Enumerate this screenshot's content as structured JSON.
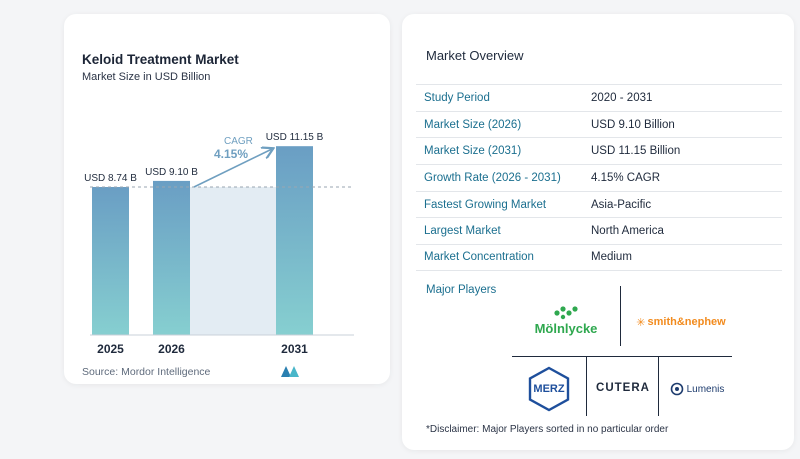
{
  "chart": {
    "title": "Keloid Treatment Market",
    "subtitle": "Market Size in USD Billion",
    "source": "Source:  Mordor Intelligence",
    "cagr_label": "CAGR",
    "cagr_value": "4.15%",
    "colors": {
      "bar_top": "#6a9ec4",
      "bar_bottom": "#86cfd0",
      "band": "#e3ecf3",
      "arrow": "#6f9fc0",
      "cagr_text": "#6f9fc0"
    }
  },
  "chart_data": {
    "type": "bar",
    "categories": [
      "2025",
      "2026",
      "2031"
    ],
    "values": [
      8.74,
      9.1,
      11.15
    ],
    "value_labels": [
      "USD 8.74 B",
      "USD 9.10 B",
      "USD 11.15 B"
    ],
    "title": "Keloid Treatment Market",
    "subtitle": "Market Size in USD Billion",
    "xlabel": "",
    "ylabel": "",
    "annotations": [
      {
        "text": "CAGR 4.15%",
        "from": "2026",
        "to": "2031"
      }
    ],
    "grid": false
  },
  "overview": {
    "title": "Market Overview",
    "rows": [
      {
        "label": "Study Period",
        "value": "2020 - 2031"
      },
      {
        "label": "Market Size (2026)",
        "value": "USD 9.10 Billion"
      },
      {
        "label": "Market Size (2031)",
        "value": "USD 11.15 Billion"
      },
      {
        "label": "Growth Rate (2026 - 2031)",
        "value": "4.15% CAGR"
      },
      {
        "label": "Fastest Growing Market",
        "value": "Asia-Pacific"
      },
      {
        "label": "Largest Market",
        "value": "North America"
      },
      {
        "label": "Market Concentration",
        "value": "Medium"
      }
    ],
    "players_title": "Major Players",
    "players": [
      "Mölnlycke",
      "smith&nephew",
      "MERZ",
      "CUTERA",
      "Lumenis"
    ],
    "disclaimer": "*Disclaimer: Major Players sorted in no particular order"
  }
}
